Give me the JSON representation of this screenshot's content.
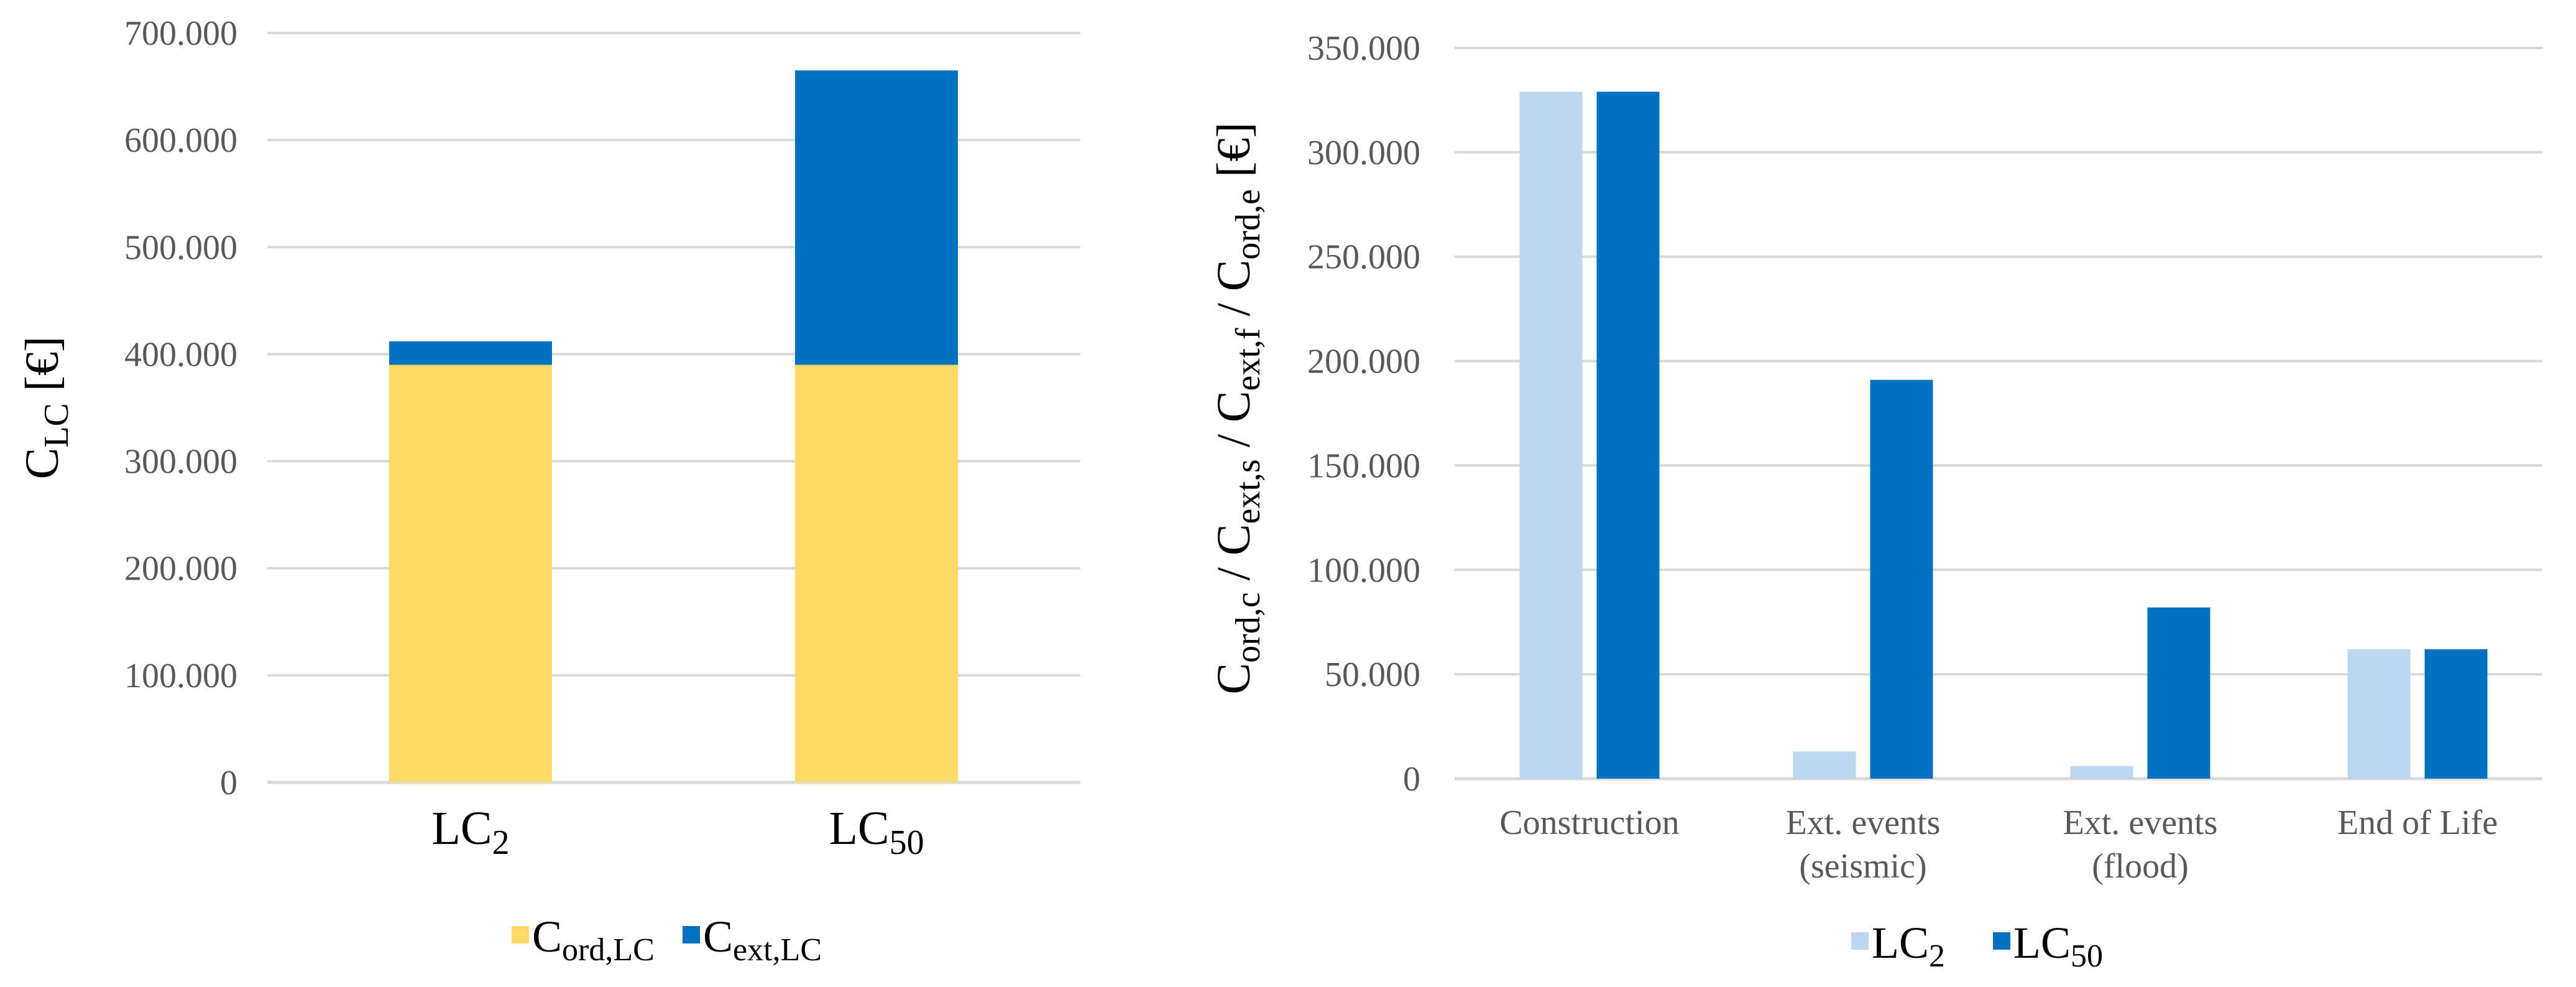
{
  "chart_data": [
    {
      "type": "bar",
      "stacked": true,
      "title": "",
      "ylabel": {
        "base": "C",
        "sub": "LC",
        "unit": " [€]"
      },
      "xlabel": "",
      "ylim": [
        0,
        700000
      ],
      "y_ticks": [
        "0",
        "100.000",
        "200.000",
        "300.000",
        "400.000",
        "500.000",
        "600.000",
        "700.000"
      ],
      "categories": [
        {
          "base": "LC",
          "sub": "2"
        },
        {
          "base": "LC",
          "sub": "50"
        }
      ],
      "series": [
        {
          "name": {
            "base": "C",
            "sub": "ord,LC"
          },
          "color": "#FFD966",
          "values": [
            390000,
            390000
          ]
        },
        {
          "name": {
            "base": "C",
            "sub": "ext,LC"
          },
          "color": "#0070C0",
          "values": [
            22000,
            275000
          ]
        }
      ],
      "legend": "bottom",
      "grid": true
    },
    {
      "type": "bar",
      "stacked": false,
      "title": "",
      "ylabel": {
        "parts": [
          {
            "base": "C",
            "sub": "ord,c"
          },
          {
            "base": " / C",
            "sub": "ext,s"
          },
          {
            "base": " / C",
            "sub": "ext,f"
          },
          {
            "base": " / C",
            "sub": "ord,e"
          }
        ],
        "unit": " [€]"
      },
      "xlabel": "",
      "ylim": [
        0,
        350000
      ],
      "y_ticks": [
        "0",
        "50.000",
        "100.000",
        "150.000",
        "200.000",
        "250.000",
        "300.000",
        "350.000"
      ],
      "categories": [
        [
          "Construction"
        ],
        [
          "Ext. events",
          "(seismic)"
        ],
        [
          "Ext. events",
          "(flood)"
        ],
        [
          "End of Life"
        ]
      ],
      "series": [
        {
          "name": {
            "base": "LC",
            "sub": "2"
          },
          "color": "#BDD7EE",
          "values": [
            329000,
            13000,
            6000,
            62000
          ]
        },
        {
          "name": {
            "base": "LC",
            "sub": "50"
          },
          "color": "#0070C0",
          "values": [
            329000,
            191000,
            82000,
            62000
          ]
        }
      ],
      "legend": "bottom",
      "grid": true
    }
  ]
}
